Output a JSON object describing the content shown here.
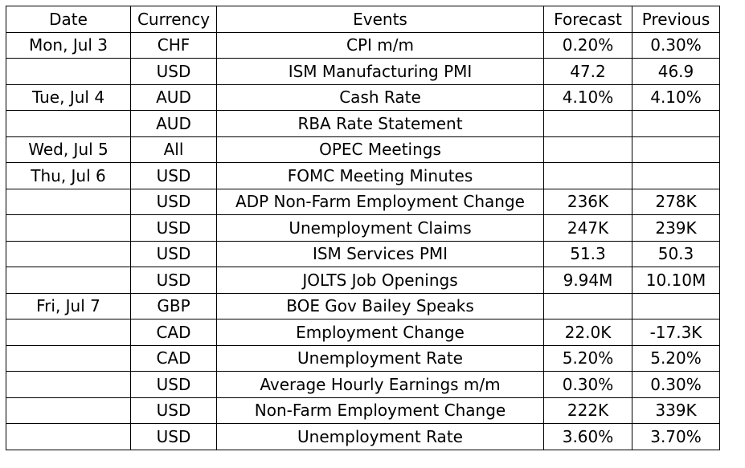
{
  "table": {
    "headers": [
      "Date",
      "Currency",
      "Events",
      "Forecast",
      "Previous"
    ],
    "rows": [
      {
        "date": "Mon, Jul 3",
        "currency": "CHF",
        "event": "CPI m/m",
        "forecast": "0.20%",
        "previous": "0.30%"
      },
      {
        "date": "",
        "currency": "USD",
        "event": "ISM Manufacturing PMI",
        "forecast": "47.2",
        "previous": "46.9"
      },
      {
        "date": "Tue, Jul 4",
        "currency": "AUD",
        "event": "Cash Rate",
        "forecast": "4.10%",
        "previous": "4.10%"
      },
      {
        "date": "",
        "currency": "AUD",
        "event": "RBA Rate Statement",
        "forecast": "",
        "previous": ""
      },
      {
        "date": "Wed, Jul 5",
        "currency": "All",
        "event": "OPEC Meetings",
        "forecast": "",
        "previous": ""
      },
      {
        "date": "Thu, Jul 6",
        "currency": "USD",
        "event": "FOMC Meeting Minutes",
        "forecast": "",
        "previous": ""
      },
      {
        "date": "",
        "currency": "USD",
        "event": "ADP Non-Farm Employment Change",
        "forecast": "236K",
        "previous": "278K"
      },
      {
        "date": "",
        "currency": "USD",
        "event": "Unemployment Claims",
        "forecast": "247K",
        "previous": "239K"
      },
      {
        "date": "",
        "currency": "USD",
        "event": "ISM Services PMI",
        "forecast": "51.3",
        "previous": "50.3"
      },
      {
        "date": "",
        "currency": "USD",
        "event": "JOLTS Job Openings",
        "forecast": "9.94M",
        "previous": "10.10M"
      },
      {
        "date": "Fri, Jul 7",
        "currency": "GBP",
        "event": "BOE Gov Bailey Speaks",
        "forecast": "",
        "previous": ""
      },
      {
        "date": "",
        "currency": "CAD",
        "event": "Employment Change",
        "forecast": "22.0K",
        "previous": "-17.3K"
      },
      {
        "date": "",
        "currency": "CAD",
        "event": "Unemployment Rate",
        "forecast": "5.20%",
        "previous": "5.20%"
      },
      {
        "date": "",
        "currency": "USD",
        "event": "Average Hourly Earnings m/m",
        "forecast": "0.30%",
        "previous": "0.30%"
      },
      {
        "date": "",
        "currency": "USD",
        "event": "Non-Farm Employment Change",
        "forecast": "222K",
        "previous": "339K"
      },
      {
        "date": "",
        "currency": "USD",
        "event": "Unemployment Rate",
        "forecast": "3.60%",
        "previous": "3.70%"
      }
    ]
  }
}
